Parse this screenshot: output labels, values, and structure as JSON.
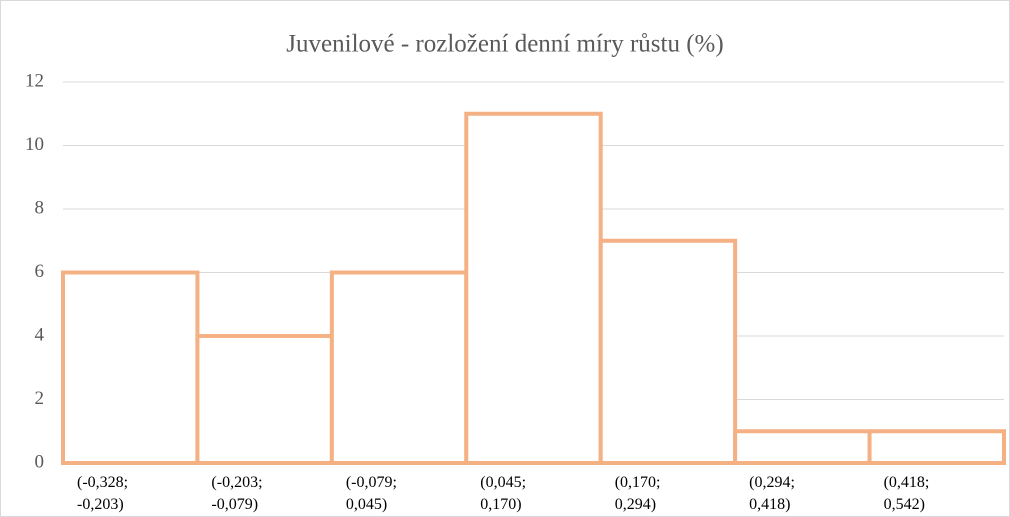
{
  "chart_data": {
    "type": "bar",
    "title": "Juvenilové - rozložení denní míry růstu (%)",
    "categories": [
      "(-0,328; -0,203)",
      "(-0,203; -0,079)",
      "(-0,079; 0,045)",
      "(0,045; 0,170)",
      "(0,170; 0,294)",
      "(0,294; 0,418)",
      "(0,418; 0,542)"
    ],
    "values": [
      6,
      4,
      6,
      11,
      7,
      1,
      1
    ],
    "color": "#f4b183",
    "ylim": [
      0,
      12
    ],
    "yticks": [
      0,
      2,
      4,
      6,
      8,
      10,
      12
    ],
    "grid": true
  }
}
